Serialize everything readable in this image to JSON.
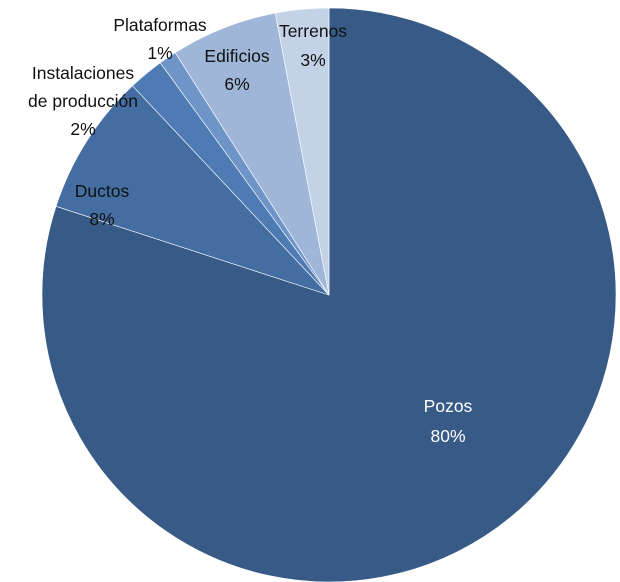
{
  "chart_data": {
    "type": "pie",
    "start_angle_deg": 0,
    "direction": "clockwise",
    "slices": [
      {
        "label": "Pozos",
        "value": 80,
        "value_label": "80%",
        "color": "#375a86"
      },
      {
        "label": "Ductos",
        "value": 8,
        "value_label": "8%",
        "color": "#446da1"
      },
      {
        "label": "Instalaciones de producción",
        "label_lines": [
          "Instalaciones",
          "de producción"
        ],
        "value": 2,
        "value_label": "2%",
        "color": "#4f7bb4"
      },
      {
        "label": "Plataformas",
        "value": 1,
        "value_label": "1%",
        "color": "#6f95c8"
      },
      {
        "label": "Edificios",
        "value": 6,
        "value_label": "6%",
        "color": "#9fb6d9"
      },
      {
        "label": "Terrenos",
        "value": 3,
        "value_label": "3%",
        "color": "#c4d2e8"
      }
    ]
  }
}
